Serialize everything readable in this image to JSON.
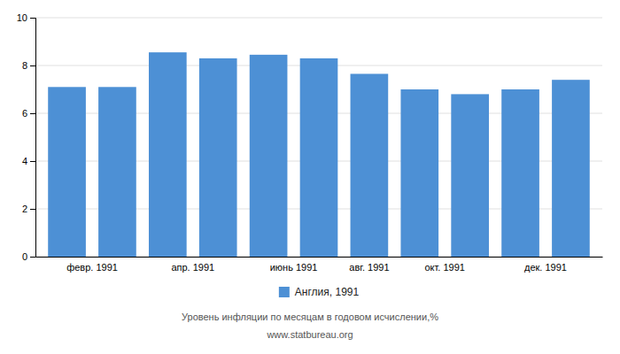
{
  "chart_data": {
    "type": "bar",
    "categories": [
      "февр. 1991",
      null,
      "апр. 1991",
      null,
      "июнь 1991",
      null,
      "авг. 1991",
      "окт. 1991",
      null,
      "дек. 1991",
      null
    ],
    "series": [
      {
        "name": "Англия, 1991",
        "color": "#4d90d5",
        "values": [
          7.1,
          7.1,
          8.55,
          8.3,
          8.45,
          8.3,
          7.65,
          7.0,
          6.8,
          7.0,
          7.4
        ]
      }
    ],
    "ylim": [
      0,
      10
    ],
    "yticks": [
      0,
      2,
      4,
      6,
      8,
      10
    ],
    "grid": true,
    "legend": "bottom",
    "xlabel": "Уровень инфляции по месяцам в годовом исчислении,%",
    "annotations": [
      "www.statbureau.org"
    ]
  }
}
